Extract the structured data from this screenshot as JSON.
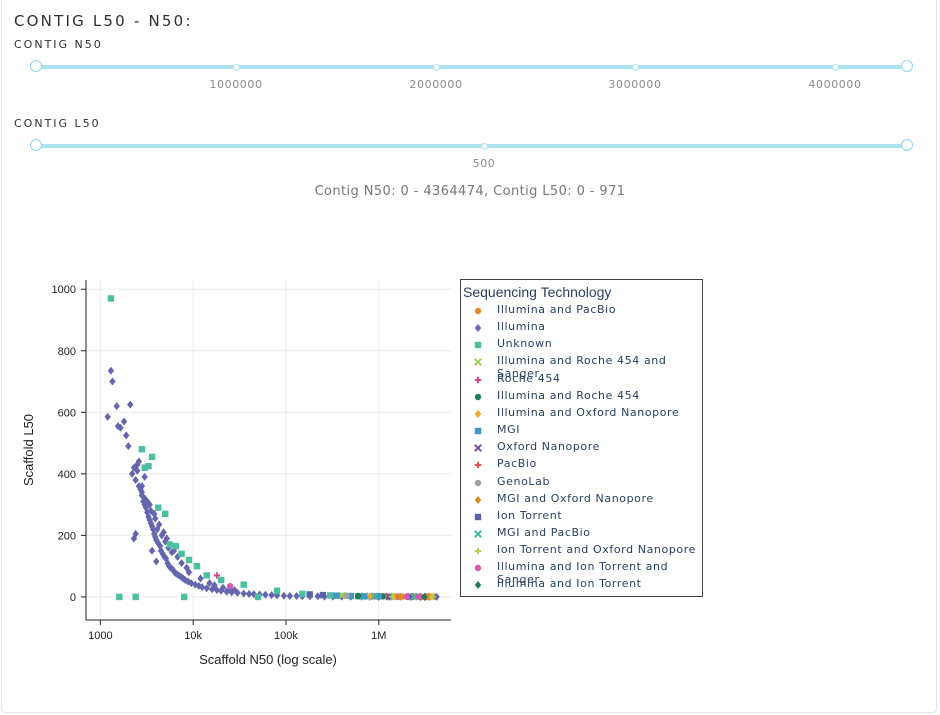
{
  "header": {
    "title": "CONTIG L50 - N50:"
  },
  "n50_slider": {
    "label": "CONTIG N50",
    "min": 0,
    "max": 4364474,
    "selected": [
      0,
      4364474
    ],
    "marks": [
      "1000000",
      "2000000",
      "3000000",
      "4000000"
    ]
  },
  "l50_slider": {
    "label": "CONTIG L50",
    "min": 0,
    "max": 971,
    "selected": [
      0,
      971
    ],
    "marks": [
      "500"
    ]
  },
  "range_text": "Contig N50: 0 - 4364474, Contig L50: 0 - 971",
  "chart_data": {
    "type": "scatter",
    "xlabel": "Scaffold N50 (log scale)",
    "ylabel": "Scaffold L50",
    "x_scale": "log",
    "xlim": [
      700,
      6000000
    ],
    "ylim": [
      -75,
      1030
    ],
    "x_ticks": [
      {
        "value": 1000,
        "label": "1000"
      },
      {
        "value": 10000,
        "label": "10k"
      },
      {
        "value": 100000,
        "label": "100k"
      },
      {
        "value": 1000000,
        "label": "1M"
      }
    ],
    "y_ticks": [
      0,
      200,
      400,
      600,
      800,
      1000
    ],
    "grid": true,
    "legend_title": "Sequencing Technology",
    "legend_position": "right",
    "series": [
      {
        "name": "Illumina and PacBio",
        "color": "#e8892a",
        "marker": "circle",
        "x": [
          1200000,
          1800000,
          2500000,
          3200000,
          4000000
        ],
        "y": [
          2,
          1,
          2,
          1,
          1
        ]
      },
      {
        "name": "Illumina",
        "color": "#6566ad",
        "marker": "diamond",
        "x": [
          1200,
          1300,
          1350,
          1500,
          1550,
          1650,
          1900,
          2100,
          2200,
          2300,
          2400,
          2500,
          2500,
          2600,
          2700,
          2800,
          2800,
          2900,
          3000,
          3000,
          3100,
          3200,
          3300,
          3400,
          3500,
          3600,
          3700,
          3800,
          3900,
          4000,
          4200,
          4400,
          4500,
          4700,
          4900,
          5100,
          5300,
          5500,
          5700,
          6000,
          6300,
          6600,
          7000,
          7400,
          7800,
          8200,
          8800,
          9500,
          10500,
          11500,
          12500,
          14000,
          16000,
          18000,
          20000,
          23000,
          26000,
          30000,
          35000,
          40000,
          45000,
          52000,
          60000,
          70000,
          80000,
          95000,
          110000,
          130000,
          150000,
          180000,
          220000,
          260000,
          320000,
          400000,
          500000,
          650000,
          800000,
          1000000,
          1300000,
          1700000,
          2200000,
          2800000,
          3500000,
          4200000,
          2600,
          2800,
          3200,
          3500,
          3900,
          4300,
          4800,
          5200,
          5600,
          6200,
          6800,
          7500,
          3000,
          3400,
          3800,
          4100,
          4600,
          5000,
          5400,
          5900,
          2400,
          2300,
          3600,
          4000,
          1800,
          2000,
          8500,
          9000,
          12000,
          15000,
          17000,
          21000,
          25000,
          28000
        ],
        "y": [
          585,
          735,
          700,
          620,
          555,
          550,
          525,
          625,
          400,
          420,
          380,
          430,
          410,
          440,
          350,
          330,
          360,
          310,
          300,
          320,
          290,
          275,
          260,
          250,
          240,
          230,
          220,
          205,
          195,
          185,
          175,
          165,
          150,
          140,
          130,
          125,
          110,
          100,
          95,
          90,
          80,
          75,
          70,
          65,
          60,
          55,
          50,
          45,
          40,
          36,
          32,
          28,
          25,
          22,
          20,
          17,
          15,
          13,
          11,
          10,
          9,
          8,
          7,
          6,
          5,
          4,
          3,
          3,
          2,
          2,
          2,
          1,
          1,
          1,
          1,
          1,
          0,
          0,
          0,
          0,
          0,
          0,
          0,
          0,
          360,
          340,
          310,
          280,
          255,
          235,
          210,
          190,
          170,
          150,
          130,
          110,
          390,
          300,
          270,
          220,
          200,
          180,
          160,
          145,
          205,
          190,
          150,
          115,
          570,
          490,
          95,
          80,
          60,
          45,
          38,
          30,
          26,
          22
        ]
      },
      {
        "name": "Unknown",
        "color": "#4cbf9f",
        "marker": "square",
        "x": [
          1300,
          1600,
          2400,
          2800,
          3000,
          3300,
          3600,
          4200,
          5000,
          5600,
          6500,
          7500,
          8000,
          9000,
          11000,
          14000,
          20000,
          35000,
          50000,
          80000,
          150000,
          300000,
          600000,
          1500000
        ],
        "y": [
          970,
          0,
          0,
          480,
          420,
          425,
          455,
          290,
          270,
          170,
          165,
          140,
          0,
          120,
          100,
          70,
          55,
          40,
          0,
          20,
          10,
          5,
          2,
          1
        ]
      },
      {
        "name": "Illumina and Roche 454 and Sanger",
        "color": "#9fd356",
        "marker": "x",
        "x": [
          400000,
          700000
        ],
        "y": [
          5,
          3
        ]
      },
      {
        "name": "Roche 454",
        "color": "#d9478c",
        "marker": "cross",
        "x": [
          18000,
          900000
        ],
        "y": [
          70,
          2
        ]
      },
      {
        "name": "Illumina and Roche 454",
        "color": "#1d7a5c",
        "marker": "circle",
        "x": [
          600000,
          1100000
        ],
        "y": [
          3,
          2
        ]
      },
      {
        "name": "Illumina and Oxford Nanopore",
        "color": "#e8a928",
        "marker": "diamond",
        "x": [
          800000,
          1500000,
          2500000,
          3600000
        ],
        "y": [
          2,
          1,
          1,
          1
        ]
      },
      {
        "name": "MGI",
        "color": "#3f97c9",
        "marker": "square",
        "x": [
          350000,
          500000,
          700000,
          1000000
        ],
        "y": [
          4,
          3,
          2,
          2
        ]
      },
      {
        "name": "Oxford Nanopore",
        "color": "#7a4d98",
        "marker": "x",
        "x": [
          1300000,
          2200000,
          3000000
        ],
        "y": [
          1,
          1,
          0
        ]
      },
      {
        "name": "PacBio",
        "color": "#e8524c",
        "marker": "cross",
        "x": [
          1600000,
          2000000,
          2900000
        ],
        "y": [
          1,
          1,
          0
        ]
      },
      {
        "name": "GenoLab",
        "color": "#a3a39b",
        "marker": "circle",
        "x": [
          450000
        ],
        "y": [
          4
        ]
      },
      {
        "name": "MGI and Oxford Nanopore",
        "color": "#d98a20",
        "marker": "diamond",
        "x": [
          1700000,
          3400000
        ],
        "y": [
          1,
          1
        ]
      },
      {
        "name": "Ion Torrent",
        "color": "#5a61a8",
        "marker": "square",
        "x": [
          180000,
          250000
        ],
        "y": [
          8,
          6
        ]
      },
      {
        "name": "MGI and PacBio",
        "color": "#3fb6a1",
        "marker": "x",
        "x": [
          900000,
          2400000
        ],
        "y": [
          2,
          1
        ]
      },
      {
        "name": "Ion Torrent and Oxford Nanopore",
        "color": "#b4d34a",
        "marker": "cross",
        "x": [
          1400000,
          3800000
        ],
        "y": [
          1,
          1
        ]
      },
      {
        "name": "Illumina and Ion Torrent and Sanger",
        "color": "#d25bb0",
        "marker": "circle",
        "x": [
          25000,
          2000000,
          2700000
        ],
        "y": [
          35,
          1,
          1
        ]
      },
      {
        "name": "Illumina and Ion Torrent",
        "color": "#1e7a58",
        "marker": "diamond",
        "x": [
          3100000
        ],
        "y": [
          0
        ]
      }
    ]
  }
}
